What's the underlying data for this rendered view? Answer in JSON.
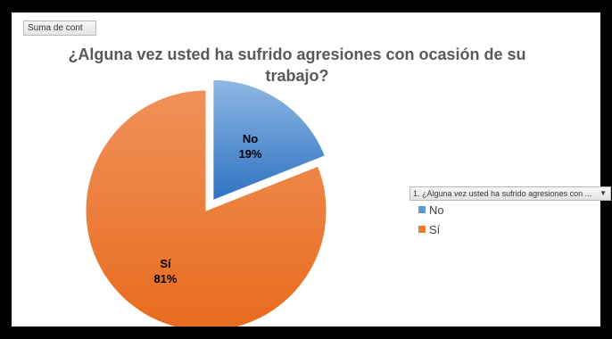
{
  "field_button": "Suma de cont",
  "legend_filter": "1. ¿Alguna vez usted ha sufrido agresiones con ...",
  "chart_data": {
    "type": "pie",
    "title": "¿Alguna vez usted ha sufrido agresiones con ocasión de su trabajo?",
    "title_lines": [
      "¿Alguna vez usted ha sufrido agresiones con ocasión de su",
      "trabajo?"
    ],
    "categories": [
      "No",
      "Sí"
    ],
    "values": [
      19,
      81
    ],
    "data_labels": [
      "19%",
      "81%"
    ],
    "colors": [
      "#5b9bd5",
      "#ed7d31"
    ],
    "exploded": [
      "No"
    ],
    "legend_position": "right"
  }
}
